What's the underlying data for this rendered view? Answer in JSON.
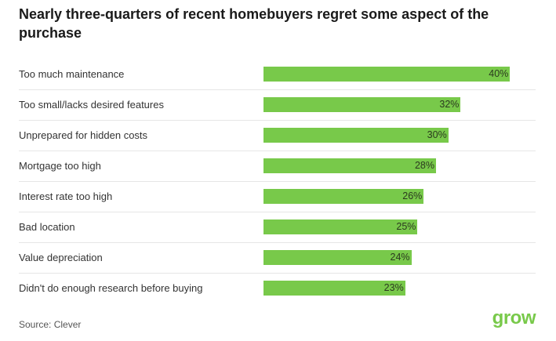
{
  "chart_data": {
    "type": "bar",
    "orientation": "horizontal",
    "title": "Nearly three-quarters of recent homebuyers regret some aspect of the purchase",
    "categories": [
      "Too much maintenance",
      "Too small/lacks desired features",
      "Unprepared for hidden costs",
      "Mortgage too high",
      "Interest rate too high",
      "Bad location",
      "Value depreciation",
      "Didn't do enough research before buying"
    ],
    "values": [
      40,
      32,
      30,
      28,
      26,
      25,
      24,
      23
    ],
    "value_suffix": "%",
    "xlim": [
      0,
      42
    ],
    "xlabel": "",
    "ylabel": "",
    "bar_color": "#78c94a"
  },
  "source": "Source: Clever",
  "logo": "grow"
}
